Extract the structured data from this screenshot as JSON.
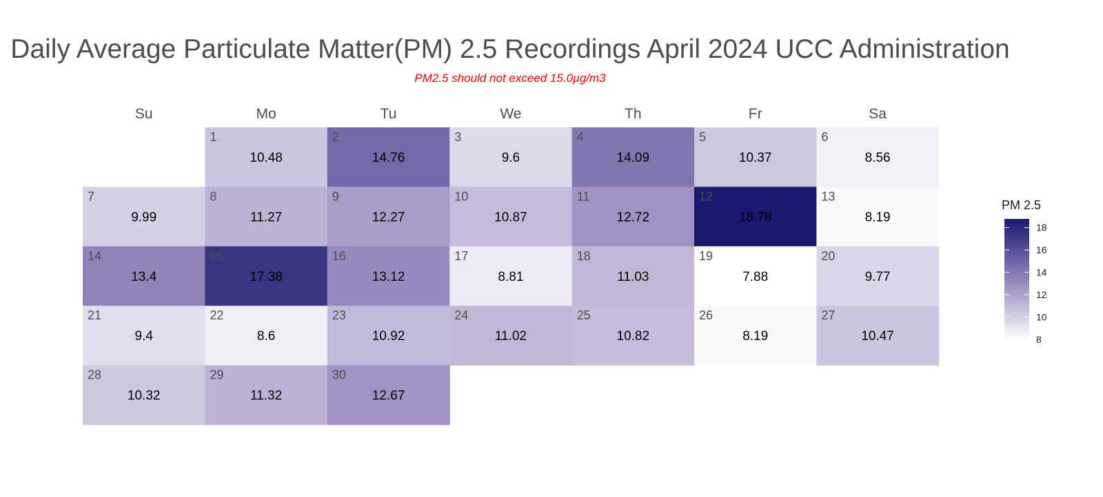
{
  "chart_data": {
    "type": "heatmap",
    "title": "Daily Average Particulate Matter(PM) 2.5 Recordings April 2024 UCC Administration",
    "subtitle": "PM2.5 should not exceed 15.0µg/m3",
    "weekdays": [
      "Su",
      "Mo",
      "Tu",
      "We",
      "Th",
      "Fr",
      "Sa"
    ],
    "first_weekday_index": 1,
    "days": [
      1,
      2,
      3,
      4,
      5,
      6,
      7,
      8,
      9,
      10,
      11,
      12,
      13,
      14,
      15,
      16,
      17,
      18,
      19,
      20,
      21,
      22,
      23,
      24,
      25,
      26,
      27,
      28,
      29,
      30
    ],
    "values": [
      10.48,
      14.76,
      9.6,
      14.09,
      10.37,
      8.56,
      9.99,
      11.27,
      12.27,
      10.87,
      12.72,
      18.78,
      8.19,
      13.4,
      17.38,
      13.12,
      8.81,
      11.03,
      7.88,
      9.77,
      9.4,
      8.6,
      10.92,
      11.02,
      10.82,
      8.19,
      10.47,
      10.32,
      11.32,
      12.67
    ],
    "legend": {
      "title": "PM 2.5",
      "ticks": [
        8,
        10,
        12,
        14,
        16,
        18
      ],
      "range": [
        7.88,
        18.78
      ],
      "placement": "right"
    },
    "colors": {
      "low": "#ffffff",
      "mid": "#9a8cc0",
      "high": "#191970",
      "subtitle": "#ff0000"
    }
  }
}
